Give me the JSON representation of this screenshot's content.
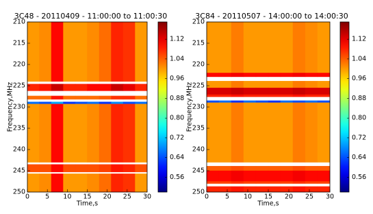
{
  "chart_data": [
    {
      "type": "heatmap",
      "title": "3C48 - 20110409 - 11:00:00 to 11:00:30",
      "xlabel": "Time,s",
      "ylabel": "Frequency,MHz",
      "colormap": "jet",
      "x": [
        0,
        3,
        6,
        9,
        12,
        15,
        18,
        21,
        24,
        27,
        30
      ],
      "y": [
        210,
        224,
        224.6,
        226.2,
        227.4,
        228.2,
        228.8,
        229.3,
        243,
        243.5,
        245.3,
        245.7,
        250
      ],
      "values": [
        [
          1.0,
          1.01,
          1.1,
          1.0,
          1.0,
          1.01,
          1.03,
          1.08,
          1.07,
          1.0
        ],
        [
          null,
          null,
          null,
          null,
          null,
          null,
          null,
          null,
          null,
          null
        ],
        [
          1.08,
          1.09,
          1.14,
          1.08,
          1.08,
          1.1,
          1.1,
          1.14,
          1.12,
          1.08
        ],
        [
          null,
          null,
          null,
          null,
          null,
          null,
          null,
          null,
          null,
          null
        ],
        [
          1.03,
          1.03,
          1.09,
          1.03,
          1.03,
          1.03,
          1.04,
          1.07,
          1.07,
          1.03
        ],
        [
          null,
          null,
          null,
          null,
          null,
          null,
          null,
          null,
          null,
          null
        ],
        [
          0.66,
          0.64,
          0.7,
          0.62,
          0.64,
          0.66,
          0.62,
          0.68,
          0.64,
          0.66
        ],
        [
          1.0,
          1.01,
          1.1,
          1.0,
          1.0,
          1.01,
          1.03,
          1.08,
          1.07,
          1.0
        ],
        [
          null,
          null,
          null,
          null,
          null,
          null,
          null,
          null,
          null,
          null
        ],
        [
          1.05,
          1.05,
          1.1,
          1.05,
          1.05,
          1.05,
          1.06,
          1.09,
          1.08,
          1.05
        ],
        [
          null,
          null,
          null,
          null,
          null,
          null,
          null,
          null,
          null,
          null
        ],
        [
          1.0,
          1.01,
          1.1,
          1.0,
          1.0,
          1.01,
          1.03,
          1.08,
          1.07,
          1.0
        ]
      ],
      "xlim": [
        0,
        30
      ],
      "xticks": [
        0,
        5,
        10,
        15,
        20,
        25,
        30
      ],
      "ylim": [
        250,
        210
      ],
      "yticks": [
        210,
        215,
        220,
        225,
        230,
        235,
        240,
        245,
        250
      ],
      "clim": [
        0.5,
        1.19
      ],
      "cticks": [
        0.56,
        0.64,
        0.72,
        {
          "value": 0.8,
          "label": "0.80"
        },
        0.88,
        0.96,
        1.04,
        1.12
      ]
    },
    {
      "type": "heatmap",
      "title": "3C84 - 20110507 - 14:00:00 to 14:00:30",
      "xlabel": "Time,s",
      "ylabel": "Frequency,MHz",
      "colormap": "jet",
      "x": [
        0,
        3,
        6,
        9,
        12,
        15,
        18,
        21,
        24,
        27,
        30
      ],
      "y": [
        210,
        222,
        222.9,
        223.9,
        225.5,
        227.1,
        227.6,
        228.5,
        229,
        243,
        243.9,
        245,
        247.5,
        248,
        248.7,
        250
      ],
      "values": [
        [
          1.0,
          1.0,
          1.02,
          1.0,
          1.0,
          1.0,
          1.0,
          1.02,
          1.01,
          1.0
        ],
        [
          1.1,
          1.1,
          1.11,
          1.1,
          1.1,
          1.1,
          1.1,
          1.11,
          1.1,
          1.1
        ],
        [
          null,
          null,
          null,
          null,
          null,
          null,
          null,
          null,
          null,
          null
        ],
        [
          1.0,
          1.0,
          1.02,
          1.0,
          1.0,
          1.0,
          1.0,
          1.02,
          1.01,
          1.0
        ],
        [
          1.13,
          1.13,
          1.14,
          1.13,
          1.13,
          1.13,
          1.13,
          1.14,
          1.13,
          1.13
        ],
        [
          1.08,
          1.08,
          1.09,
          1.08,
          1.08,
          1.08,
          1.08,
          1.09,
          1.08,
          1.08
        ],
        [
          null,
          null,
          null,
          null,
          null,
          null,
          null,
          null,
          null,
          null
        ],
        [
          0.64,
          0.66,
          0.62,
          0.66,
          0.64,
          0.62,
          0.66,
          0.64,
          0.66,
          0.64
        ],
        [
          1.0,
          1.0,
          1.02,
          1.0,
          1.0,
          1.0,
          1.0,
          1.02,
          1.01,
          1.0
        ],
        [
          null,
          null,
          null,
          null,
          null,
          null,
          null,
          null,
          null,
          null
        ],
        [
          1.04,
          1.04,
          1.05,
          1.04,
          1.04,
          1.04,
          1.04,
          1.05,
          1.04,
          1.04
        ],
        [
          1.1,
          1.1,
          1.11,
          1.1,
          1.1,
          1.1,
          1.1,
          1.11,
          1.1,
          1.1
        ],
        [
          1.06,
          1.06,
          1.07,
          1.06,
          1.06,
          1.06,
          1.06,
          1.07,
          1.06,
          1.06
        ],
        [
          null,
          null,
          null,
          null,
          null,
          null,
          null,
          null,
          null,
          null
        ],
        [
          1.08,
          1.08,
          1.09,
          1.08,
          1.08,
          1.08,
          1.08,
          1.09,
          1.08,
          1.08
        ]
      ],
      "xlim": [
        0,
        30
      ],
      "xticks": [
        0,
        5,
        10,
        15,
        20,
        25,
        30
      ],
      "ylim": [
        250,
        210
      ],
      "yticks": [
        210,
        215,
        220,
        225,
        230,
        235,
        240,
        245,
        250
      ],
      "clim": [
        0.5,
        1.19
      ],
      "cticks": [
        0.56,
        0.64,
        0.72,
        {
          "value": 0.8,
          "label": "0.80"
        },
        0.88,
        0.96,
        1.04,
        1.12
      ]
    }
  ]
}
